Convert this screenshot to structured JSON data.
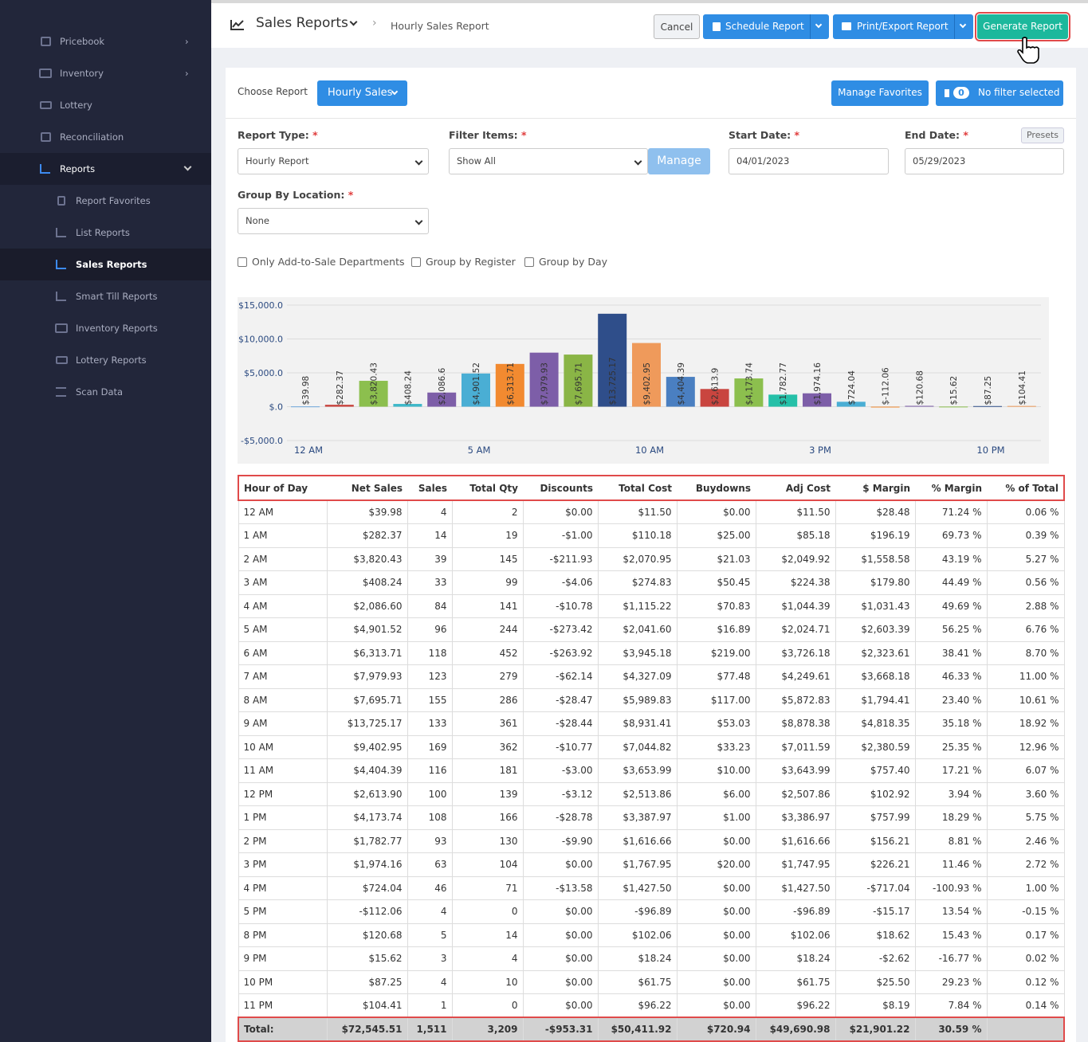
{
  "sidebar": {
    "items": [
      "Pricebook",
      "Inventory",
      "Lottery",
      "Reconciliation",
      "Reports"
    ],
    "subitems": [
      "Report Favorites",
      "List Reports",
      "Sales Reports",
      "Smart Till Reports",
      "Inventory Reports",
      "Lottery Reports",
      "Scan Data"
    ]
  },
  "header": {
    "title": "Sales Reports",
    "breadcrumb": "Hourly Sales Report",
    "buttons": {
      "cancel": "Cancel",
      "schedule": "Schedule Report",
      "print": "Print/Export Report",
      "generate": "Generate Report"
    }
  },
  "toolbar": {
    "choose_label": "Choose Report",
    "choose_button": "Hourly Sales",
    "favorites": "Manage Favorites",
    "filter_count": "0",
    "filter_text": "No filter selected"
  },
  "form": {
    "required": "*",
    "report_type": {
      "label": "Report Type:",
      "value": "Hourly Report"
    },
    "filter_items": {
      "label": "Filter Items:",
      "value": "Show All",
      "button": "Manage"
    },
    "start_date": {
      "label": "Start Date:",
      "value": "04/01/2023"
    },
    "end_date": {
      "label": "End Date:",
      "value": "05/29/2023"
    },
    "presets": "Presets",
    "group_by_location": {
      "label": "Group By Location:",
      "value": "None"
    },
    "checkboxes": [
      "Only Add-to-Sale Departments",
      "Group by Register",
      "Group by Day"
    ]
  },
  "chart_data": {
    "type": "bar",
    "categories": [
      "12 AM",
      null,
      null,
      null,
      null,
      "5 AM",
      null,
      null,
      null,
      null,
      "10 AM",
      null,
      null,
      null,
      null,
      "3 PM",
      null,
      null,
      null,
      null,
      "10 PM",
      null
    ],
    "values": [
      39.98,
      282.37,
      3820.43,
      408.24,
      2086.6,
      4901.52,
      6313.71,
      7979.93,
      7695.71,
      13725.17,
      9402.95,
      4404.39,
      2613.9,
      4173.74,
      1782.77,
      1974.16,
      724.04,
      -112.06,
      120.68,
      15.62,
      87.25,
      104.41
    ],
    "value_labels": [
      "$39.98",
      "$282.37",
      "$3,820.43",
      "$408.24",
      "$2,086.6",
      "$4,901.52",
      "$6,313.71",
      "$7,979.93",
      "$7,695.71",
      "$13,725.17",
      "$9,402.95",
      "$4,404.39",
      "$2,613.9",
      "$4,173.74",
      "$1,782.77",
      "$1,974.16",
      "$724.04",
      "$-112.06",
      "$120.68",
      "$15.62",
      "$87.25",
      "$104.41"
    ],
    "colors": [
      "#6fa8dc",
      "#c9453f",
      "#8cbf4e",
      "#3fb8c9",
      "#7d5ea8",
      "#4aaed4",
      "#f28a30",
      "#7d5ea8",
      "#8ab546",
      "#2f4e8a",
      "#ef9a5b",
      "#4a7fc1",
      "#c9453f",
      "#8cbf4e",
      "#25c0a8",
      "#7d5ea8",
      "#4aaed4",
      "#f28a30",
      "#7d5ea8",
      "#8cbf4e",
      "#2f4e8a",
      "#ef9a5b"
    ],
    "ylim": [
      -5000,
      15000
    ],
    "yticks": [
      {
        "value": 15000,
        "label": "$15,000.0"
      },
      {
        "value": 10000,
        "label": "$10,000.0"
      },
      {
        "value": 5000,
        "label": "$5,000.0"
      },
      {
        "value": 0,
        "label": "$.0"
      },
      {
        "value": -5000,
        "label": "-$5,000.0"
      }
    ],
    "grid": true
  },
  "table": {
    "columns": [
      "Hour of Day",
      "Net Sales",
      "Sales",
      "Total Qty",
      "Discounts",
      "Total Cost",
      "Buydowns",
      "Adj Cost",
      "$ Margin",
      "% Margin",
      "% of Total"
    ],
    "rows": [
      [
        "12 AM",
        "$39.98",
        "4",
        "2",
        "$0.00",
        "$11.50",
        "$0.00",
        "$11.50",
        "$28.48",
        "71.24 %",
        "0.06 %"
      ],
      [
        "1 AM",
        "$282.37",
        "14",
        "19",
        "-$1.00",
        "$110.18",
        "$25.00",
        "$85.18",
        "$196.19",
        "69.73 %",
        "0.39 %"
      ],
      [
        "2 AM",
        "$3,820.43",
        "39",
        "145",
        "-$211.93",
        "$2,070.95",
        "$21.03",
        "$2,049.92",
        "$1,558.58",
        "43.19 %",
        "5.27 %"
      ],
      [
        "3 AM",
        "$408.24",
        "33",
        "99",
        "-$4.06",
        "$274.83",
        "$50.45",
        "$224.38",
        "$179.80",
        "44.49 %",
        "0.56 %"
      ],
      [
        "4 AM",
        "$2,086.60",
        "84",
        "141",
        "-$10.78",
        "$1,115.22",
        "$70.83",
        "$1,044.39",
        "$1,031.43",
        "49.69 %",
        "2.88 %"
      ],
      [
        "5 AM",
        "$4,901.52",
        "96",
        "244",
        "-$273.42",
        "$2,041.60",
        "$16.89",
        "$2,024.71",
        "$2,603.39",
        "56.25 %",
        "6.76 %"
      ],
      [
        "6 AM",
        "$6,313.71",
        "118",
        "452",
        "-$263.92",
        "$3,945.18",
        "$219.00",
        "$3,726.18",
        "$2,323.61",
        "38.41 %",
        "8.70 %"
      ],
      [
        "7 AM",
        "$7,979.93",
        "123",
        "279",
        "-$62.14",
        "$4,327.09",
        "$77.48",
        "$4,249.61",
        "$3,668.18",
        "46.33 %",
        "11.00 %"
      ],
      [
        "8 AM",
        "$7,695.71",
        "155",
        "286",
        "-$28.47",
        "$5,989.83",
        "$117.00",
        "$5,872.83",
        "$1,794.41",
        "23.40 %",
        "10.61 %"
      ],
      [
        "9 AM",
        "$13,725.17",
        "133",
        "361",
        "-$28.44",
        "$8,931.41",
        "$53.03",
        "$8,878.38",
        "$4,818.35",
        "35.18 %",
        "18.92 %"
      ],
      [
        "10 AM",
        "$9,402.95",
        "169",
        "362",
        "-$10.77",
        "$7,044.82",
        "$33.23",
        "$7,011.59",
        "$2,380.59",
        "25.35 %",
        "12.96 %"
      ],
      [
        "11 AM",
        "$4,404.39",
        "116",
        "181",
        "-$3.00",
        "$3,653.99",
        "$10.00",
        "$3,643.99",
        "$757.40",
        "17.21 %",
        "6.07 %"
      ],
      [
        "12 PM",
        "$2,613.90",
        "100",
        "139",
        "-$3.12",
        "$2,513.86",
        "$6.00",
        "$2,507.86",
        "$102.92",
        "3.94 %",
        "3.60 %"
      ],
      [
        "1 PM",
        "$4,173.74",
        "108",
        "166",
        "-$28.78",
        "$3,387.97",
        "$1.00",
        "$3,386.97",
        "$757.99",
        "18.29 %",
        "5.75 %"
      ],
      [
        "2 PM",
        "$1,782.77",
        "93",
        "130",
        "-$9.90",
        "$1,616.66",
        "$0.00",
        "$1,616.66",
        "$156.21",
        "8.81 %",
        "2.46 %"
      ],
      [
        "3 PM",
        "$1,974.16",
        "63",
        "104",
        "$0.00",
        "$1,767.95",
        "$20.00",
        "$1,747.95",
        "$226.21",
        "11.46 %",
        "2.72 %"
      ],
      [
        "4 PM",
        "$724.04",
        "46",
        "71",
        "-$13.58",
        "$1,427.50",
        "$0.00",
        "$1,427.50",
        "-$717.04",
        "-100.93 %",
        "1.00 %"
      ],
      [
        "5 PM",
        "-$112.06",
        "4",
        "0",
        "$0.00",
        "-$96.89",
        "$0.00",
        "-$96.89",
        "-$15.17",
        "13.54 %",
        "-0.15 %"
      ],
      [
        "8 PM",
        "$120.68",
        "5",
        "14",
        "$0.00",
        "$102.06",
        "$0.00",
        "$102.06",
        "$18.62",
        "15.43 %",
        "0.17 %"
      ],
      [
        "9 PM",
        "$15.62",
        "3",
        "4",
        "$0.00",
        "$18.24",
        "$0.00",
        "$18.24",
        "-$2.62",
        "-16.77 %",
        "0.02 %"
      ],
      [
        "10 PM",
        "$87.25",
        "4",
        "10",
        "$0.00",
        "$61.75",
        "$0.00",
        "$61.75",
        "$25.50",
        "29.23 %",
        "0.12 %"
      ],
      [
        "11 PM",
        "$104.41",
        "1",
        "0",
        "$0.00",
        "$96.22",
        "$0.00",
        "$96.22",
        "$8.19",
        "7.84 %",
        "0.14 %"
      ]
    ],
    "total": [
      "Total:",
      "$72,545.51",
      "1,511",
      "3,209",
      "-$953.31",
      "$50,411.92",
      "$720.94",
      "$49,690.98",
      "$21,901.22",
      "30.59 %"
    ]
  }
}
